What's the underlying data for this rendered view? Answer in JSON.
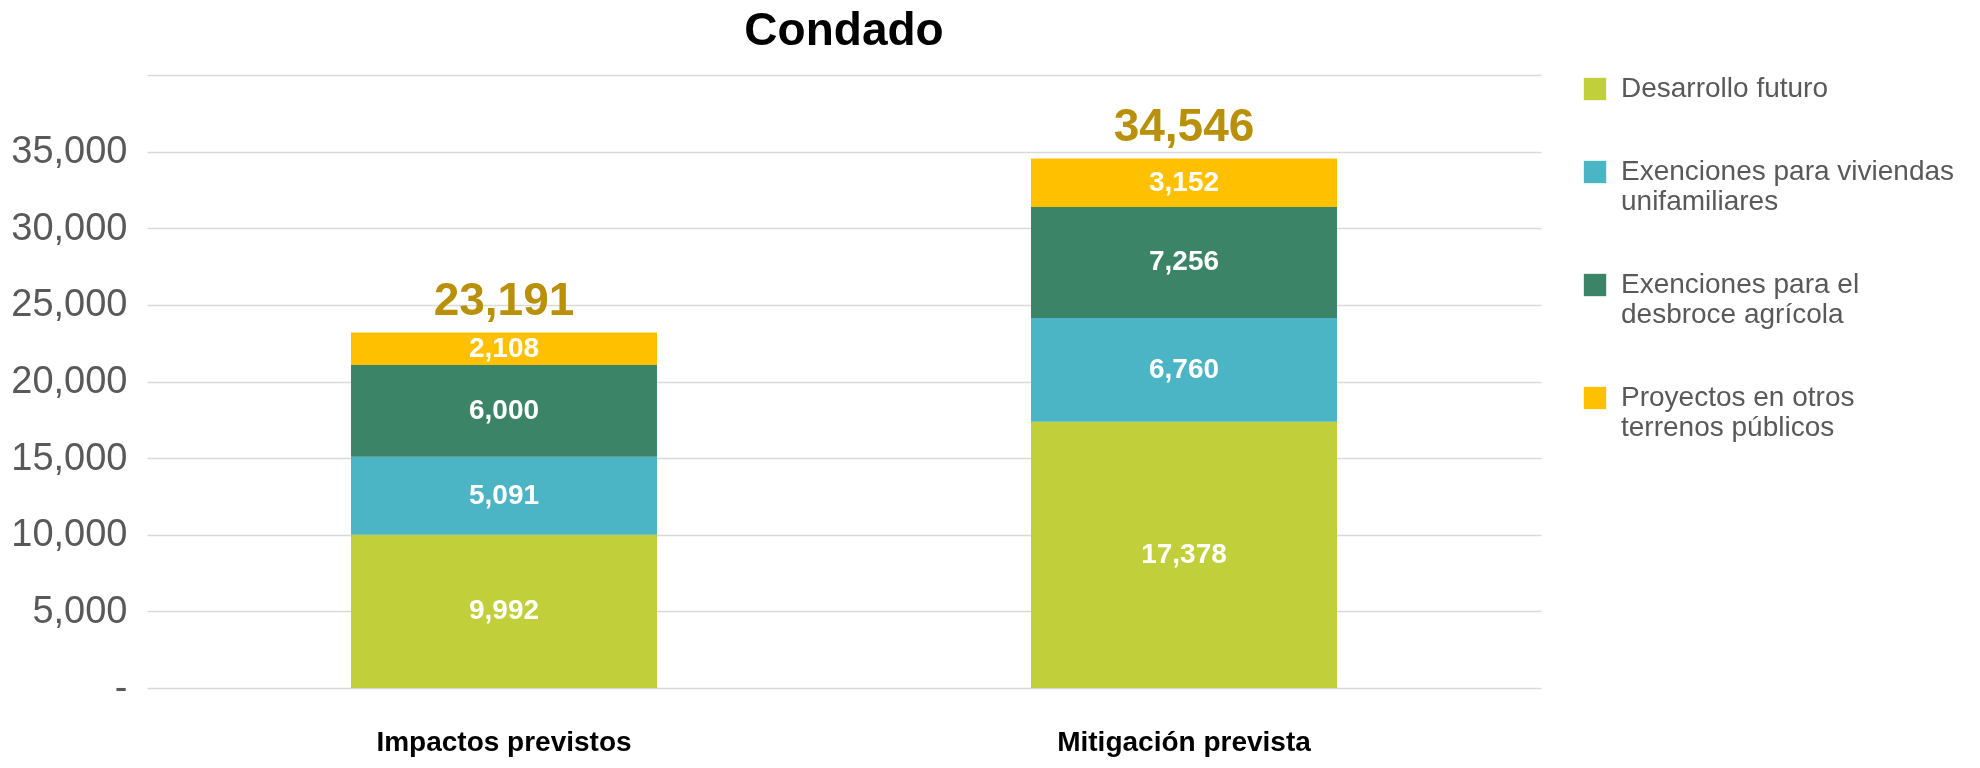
{
  "chart_data": {
    "type": "bar",
    "title": "Condado",
    "categories": [
      "Impactos previstos",
      "Mitigación prevista"
    ],
    "series": [
      {
        "name": "Desarrollo futuro",
        "color": "#c0cf3a",
        "values": [
          9992,
          17378
        ],
        "value_labels": [
          "9,992",
          "17,378"
        ]
      },
      {
        "name": "Exenciones para viviendas unifamiliares",
        "color": "#4bb5c6",
        "values": [
          5091,
          6760
        ],
        "value_labels": [
          "5,091",
          "6,760"
        ]
      },
      {
        "name": "Exenciones para el desbroce agrícola",
        "color": "#3b8468",
        "values": [
          6000,
          7256
        ],
        "value_labels": [
          "6,000",
          "7,256"
        ]
      },
      {
        "name": "Proyectos en otros terrenos públicos",
        "color": "#ffc000",
        "values": [
          2108,
          3152
        ],
        "value_labels": [
          "2,108",
          "3,152"
        ]
      }
    ],
    "stacked": true,
    "totals": [
      "23,191",
      "34,546"
    ],
    "ylim": [
      0,
      40000
    ],
    "yticks": [
      {
        "value": 0,
        "label": "-"
      },
      {
        "value": 5000,
        "label": "5,000"
      },
      {
        "value": 10000,
        "label": "10,000"
      },
      {
        "value": 15000,
        "label": "15,000"
      },
      {
        "value": 20000,
        "label": "20,000"
      },
      {
        "value": 25000,
        "label": "25,000"
      },
      {
        "value": 30000,
        "label": "30,000"
      },
      {
        "value": 35000,
        "label": "35,000"
      },
      {
        "value": 40000,
        "label": null
      }
    ],
    "grid": "y",
    "legend": "right"
  }
}
